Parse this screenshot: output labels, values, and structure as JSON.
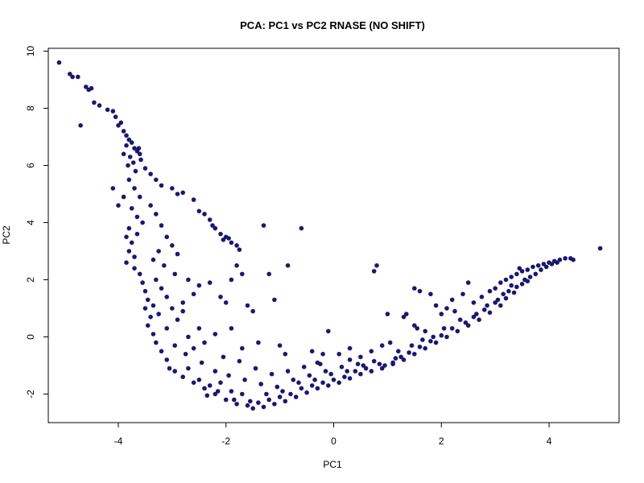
{
  "chart_data": {
    "type": "scatter",
    "title": "PCA: PC1 vs PC2 RNASE (NO SHIFT)",
    "xlabel": "PC1",
    "ylabel": "PC2",
    "xlim": [
      -5.3,
      5.3
    ],
    "ylim": [
      -3.0,
      10.1
    ],
    "xticks": [
      -4,
      -2,
      0,
      2,
      4
    ],
    "yticks": [
      -2,
      0,
      2,
      4,
      6,
      8,
      10
    ],
    "xtick_labels": [
      "-4",
      "-2",
      "0",
      "2",
      "4"
    ],
    "ytick_labels": [
      "-2",
      "0",
      "2",
      "4",
      "6",
      "8",
      "10"
    ],
    "grid": false,
    "legend": "none",
    "point_color": "#191970",
    "series": [
      {
        "points": [
          [
            -5.1,
            9.6
          ],
          [
            -4.9,
            9.2
          ],
          [
            -4.85,
            9.1
          ],
          [
            -4.75,
            9.1
          ],
          [
            -4.7,
            7.4
          ],
          [
            -4.6,
            8.75
          ],
          [
            -4.55,
            8.65
          ],
          [
            -4.5,
            8.7
          ],
          [
            -4.45,
            8.2
          ],
          [
            -4.35,
            8.1
          ],
          [
            -4.2,
            7.95
          ],
          [
            -4.1,
            7.9
          ],
          [
            -4.05,
            7.7
          ],
          [
            -4.0,
            7.4
          ],
          [
            -3.95,
            7.5
          ],
          [
            -3.9,
            7.2
          ],
          [
            -3.85,
            7.05
          ],
          [
            -3.8,
            6.9
          ],
          [
            -3.75,
            6.8
          ],
          [
            -3.7,
            6.6
          ],
          [
            -3.65,
            6.5
          ],
          [
            -3.6,
            6.4
          ],
          [
            -3.85,
            6.7
          ],
          [
            -3.78,
            6.3
          ],
          [
            -3.72,
            6.1
          ],
          [
            -3.82,
            6.0
          ],
          [
            -3.68,
            5.8
          ],
          [
            -3.9,
            6.4
          ],
          [
            -3.62,
            6.6
          ],
          [
            -3.58,
            6.2
          ],
          [
            -3.5,
            5.9
          ],
          [
            -3.4,
            5.7
          ],
          [
            -3.3,
            5.5
          ],
          [
            -3.2,
            5.3
          ],
          [
            -3.0,
            5.2
          ],
          [
            -2.9,
            5.0
          ],
          [
            -2.8,
            5.05
          ],
          [
            -2.6,
            4.8
          ],
          [
            -2.5,
            4.4
          ],
          [
            -2.4,
            4.3
          ],
          [
            -2.3,
            4.1
          ],
          [
            -2.2,
            3.8
          ],
          [
            -2.1,
            3.6
          ],
          [
            -2.0,
            3.5
          ],
          [
            -1.9,
            3.3
          ],
          [
            -1.8,
            3.2
          ],
          [
            -1.75,
            3.05
          ],
          [
            -2.25,
            3.9
          ],
          [
            -2.05,
            3.4
          ],
          [
            -1.95,
            3.45
          ],
          [
            -4.1,
            5.2
          ],
          [
            -3.9,
            4.9
          ],
          [
            -4.0,
            4.6
          ],
          [
            -3.8,
            5.5
          ],
          [
            -3.7,
            5.2
          ],
          [
            -3.6,
            4.9
          ],
          [
            -3.75,
            4.5
          ],
          [
            -3.65,
            4.2
          ],
          [
            -3.55,
            4.0
          ],
          [
            -3.8,
            3.8
          ],
          [
            -3.85,
            3.5
          ],
          [
            -3.75,
            3.3
          ],
          [
            -3.8,
            3.0
          ],
          [
            -3.7,
            2.8
          ],
          [
            -3.85,
            2.6
          ],
          [
            -3.65,
            3.6
          ],
          [
            -3.7,
            2.4
          ],
          [
            -3.6,
            2.2
          ],
          [
            -3.55,
            1.9
          ],
          [
            -3.5,
            1.6
          ],
          [
            -3.45,
            1.3
          ],
          [
            -3.5,
            1.0
          ],
          [
            -3.4,
            0.7
          ],
          [
            -3.45,
            0.4
          ],
          [
            -3.35,
            0.1
          ],
          [
            -3.3,
            -0.2
          ],
          [
            -3.2,
            -0.5
          ],
          [
            -3.1,
            -0.8
          ],
          [
            -3.05,
            -1.1
          ],
          [
            -3.4,
            4.6
          ],
          [
            -3.3,
            4.3
          ],
          [
            -3.2,
            3.9
          ],
          [
            -3.1,
            3.5
          ],
          [
            -3.0,
            3.2
          ],
          [
            -3.25,
            3.0
          ],
          [
            -3.35,
            2.7
          ],
          [
            -3.15,
            2.5
          ],
          [
            -2.95,
            2.2
          ],
          [
            -3.3,
            2.0
          ],
          [
            -3.2,
            1.7
          ],
          [
            -3.1,
            1.4
          ],
          [
            -3.35,
            1.1
          ],
          [
            -3.0,
            1.0
          ],
          [
            -3.25,
            0.8
          ],
          [
            -2.8,
            0.9
          ],
          [
            -2.9,
            0.6
          ],
          [
            -3.1,
            0.3
          ],
          [
            -2.7,
            0.0
          ],
          [
            -2.95,
            -0.3
          ],
          [
            -2.75,
            -0.6
          ],
          [
            -2.6,
            -0.4
          ],
          [
            -2.5,
            0.3
          ],
          [
            -2.4,
            -0.2
          ],
          [
            -2.2,
            0.1
          ],
          [
            -2.9,
            2.9
          ],
          [
            -2.7,
            2.0
          ],
          [
            -2.6,
            1.5
          ],
          [
            -2.8,
            1.2
          ],
          [
            -2.5,
            1.8
          ],
          [
            -2.3,
            1.9
          ],
          [
            -2.1,
            1.4
          ],
          [
            -2.0,
            1.2
          ],
          [
            -1.9,
            2.0
          ],
          [
            -1.8,
            2.5
          ],
          [
            -1.7,
            2.2
          ],
          [
            -1.9,
            0.3
          ],
          [
            -1.7,
            -0.4
          ],
          [
            -1.6,
            1.1
          ],
          [
            -1.5,
            0.9
          ],
          [
            -1.4,
            -0.2
          ],
          [
            -1.3,
            3.9
          ],
          [
            -1.2,
            2.2
          ],
          [
            -1.1,
            1.3
          ],
          [
            -1.0,
            -0.3
          ],
          [
            -0.9,
            -0.6
          ],
          [
            -0.85,
            2.5
          ],
          [
            -0.6,
            3.8
          ],
          [
            -0.4,
            -0.5
          ],
          [
            -0.3,
            -0.9
          ],
          [
            -0.2,
            -0.6
          ],
          [
            -0.1,
            0.2
          ],
          [
            0.1,
            -0.6
          ],
          [
            0.3,
            -0.4
          ],
          [
            0.3,
            -0.8
          ],
          [
            0.5,
            -0.7
          ],
          [
            0.7,
            -0.5
          ],
          [
            0.75,
            2.3
          ],
          [
            0.8,
            2.5
          ],
          [
            0.9,
            -0.3
          ],
          [
            1.0,
            0.8
          ],
          [
            1.05,
            -0.2
          ],
          [
            1.2,
            -0.5
          ],
          [
            1.3,
            0.7
          ],
          [
            1.35,
            0.8
          ],
          [
            1.5,
            0.4
          ],
          [
            1.55,
            0.3
          ],
          [
            1.5,
            1.7
          ],
          [
            1.6,
            1.6
          ],
          [
            1.7,
            0.2
          ],
          [
            1.8,
            1.5
          ],
          [
            1.9,
            1.1
          ],
          [
            2.0,
            0.8
          ],
          [
            2.1,
            1.0
          ],
          [
            2.2,
            1.3
          ],
          [
            2.4,
            1.5
          ],
          [
            2.5,
            1.9
          ],
          [
            2.6,
            1.2
          ],
          [
            2.75,
            1.4
          ],
          [
            2.9,
            1.6
          ],
          [
            3.0,
            1.7
          ],
          [
            3.1,
            1.9
          ],
          [
            3.2,
            2.0
          ],
          [
            3.3,
            2.1
          ],
          [
            3.4,
            2.2
          ],
          [
            3.5,
            2.3
          ],
          [
            3.6,
            2.35
          ],
          [
            3.7,
            2.45
          ],
          [
            3.8,
            2.5
          ],
          [
            3.9,
            2.55
          ],
          [
            4.0,
            2.6
          ],
          [
            4.1,
            2.65
          ],
          [
            4.2,
            2.7
          ],
          [
            4.3,
            2.75
          ],
          [
            4.4,
            2.75
          ],
          [
            4.45,
            2.7
          ],
          [
            4.95,
            3.1
          ],
          [
            3.45,
            2.4
          ],
          [
            3.3,
            1.8
          ],
          [
            3.05,
            1.3
          ],
          [
            3.25,
            1.6
          ],
          [
            3.55,
            2.0
          ],
          [
            2.85,
            1.1
          ],
          [
            2.65,
            0.8
          ],
          [
            2.35,
            0.6
          ],
          [
            2.25,
            0.9
          ],
          [
            2.05,
            0.3
          ],
          [
            1.85,
            0.0
          ],
          [
            1.65,
            -0.1
          ],
          [
            1.45,
            -0.3
          ],
          [
            1.25,
            -0.7
          ],
          [
            1.1,
            -0.9
          ],
          [
            0.95,
            -1.0
          ],
          [
            0.6,
            -1.1
          ],
          [
            0.4,
            -1.2
          ],
          [
            0.2,
            -1.4
          ],
          [
            0.0,
            -1.5
          ],
          [
            -0.2,
            -1.6
          ],
          [
            -0.4,
            -1.7
          ],
          [
            -0.6,
            -1.8
          ],
          [
            -0.8,
            -2.0
          ],
          [
            -1.0,
            -2.1
          ],
          [
            -1.2,
            -2.2
          ],
          [
            -1.4,
            -2.3
          ],
          [
            -1.6,
            -2.4
          ],
          [
            -1.8,
            -2.35
          ],
          [
            -2.0,
            -2.2
          ],
          [
            -2.2,
            -2.0
          ],
          [
            -2.4,
            -1.8
          ],
          [
            -2.6,
            -1.6
          ],
          [
            -2.8,
            -1.4
          ],
          [
            -2.95,
            -1.2
          ],
          [
            -1.5,
            -2.5
          ],
          [
            -1.3,
            -2.45
          ],
          [
            -1.1,
            -2.35
          ],
          [
            -0.9,
            -2.25
          ],
          [
            -0.7,
            -2.1
          ],
          [
            -0.5,
            -1.95
          ],
          [
            -0.3,
            -1.8
          ],
          [
            -0.1,
            -1.7
          ],
          [
            0.1,
            -1.6
          ],
          [
            0.3,
            -1.45
          ],
          [
            0.5,
            -1.3
          ],
          [
            0.7,
            -1.2
          ],
          [
            0.9,
            -1.1
          ],
          [
            1.1,
            -0.95
          ],
          [
            1.3,
            -0.8
          ],
          [
            1.5,
            -0.6
          ],
          [
            1.7,
            -0.4
          ],
          [
            1.9,
            -0.2
          ],
          [
            2.1,
            0.0
          ],
          [
            2.3,
            0.2
          ],
          [
            2.5,
            0.4
          ],
          [
            2.7,
            0.6
          ],
          [
            2.9,
            0.85
          ],
          [
            3.1,
            1.1
          ],
          [
            3.2,
            1.35
          ],
          [
            3.35,
            1.55
          ],
          [
            3.5,
            1.85
          ],
          [
            3.65,
            2.1
          ],
          [
            -2.5,
            -1.5
          ],
          [
            -2.3,
            -1.7
          ],
          [
            -2.1,
            -1.6
          ],
          [
            -1.9,
            -1.9
          ],
          [
            -1.7,
            -2.0
          ],
          [
            -2.7,
            -1.1
          ],
          [
            -2.45,
            -0.9
          ],
          [
            -2.2,
            -1.2
          ],
          [
            -1.95,
            -1.35
          ],
          [
            -1.65,
            -1.5
          ],
          [
            -1.35,
            -1.65
          ],
          [
            -1.05,
            -1.75
          ],
          [
            -0.75,
            -1.5
          ],
          [
            -0.45,
            -1.35
          ],
          [
            -0.15,
            -1.2
          ],
          [
            0.15,
            -1.05
          ],
          [
            0.45,
            -0.95
          ],
          [
            0.75,
            -0.85
          ],
          [
            -1.45,
            -1.1
          ],
          [
            -1.15,
            -1.3
          ],
          [
            -0.85,
            -1.2
          ],
          [
            -0.55,
            -1.05
          ],
          [
            -0.25,
            -0.95
          ],
          [
            -1.75,
            -0.85
          ],
          [
            -2.05,
            -0.7
          ],
          [
            -1.25,
            -2.0
          ],
          [
            -0.95,
            -1.9
          ],
          [
            -0.65,
            -1.6
          ],
          [
            -0.35,
            -1.5
          ],
          [
            -1.85,
            -2.2
          ],
          [
            -2.15,
            -1.9
          ],
          [
            -2.35,
            -2.05
          ],
          [
            -1.55,
            -2.25
          ],
          [
            -0.05,
            -1.3
          ],
          [
            0.25,
            -1.2
          ],
          [
            0.55,
            -1.0
          ],
          [
            0.85,
            -0.95
          ],
          [
            1.15,
            -0.75
          ],
          [
            1.4,
            -0.55
          ],
          [
            1.6,
            -0.35
          ],
          [
            1.8,
            -0.15
          ],
          [
            2.0,
            0.05
          ],
          [
            2.2,
            0.3
          ],
          [
            2.45,
            0.5
          ],
          [
            2.6,
            0.7
          ],
          [
            2.8,
            0.95
          ],
          [
            3.0,
            1.2
          ],
          [
            3.15,
            1.5
          ],
          [
            3.4,
            1.75
          ],
          [
            3.6,
            1.95
          ],
          [
            3.75,
            2.2
          ],
          [
            3.85,
            2.35
          ],
          [
            3.95,
            2.45
          ],
          [
            4.05,
            2.55
          ],
          [
            4.15,
            2.6
          ]
        ]
      }
    ]
  }
}
